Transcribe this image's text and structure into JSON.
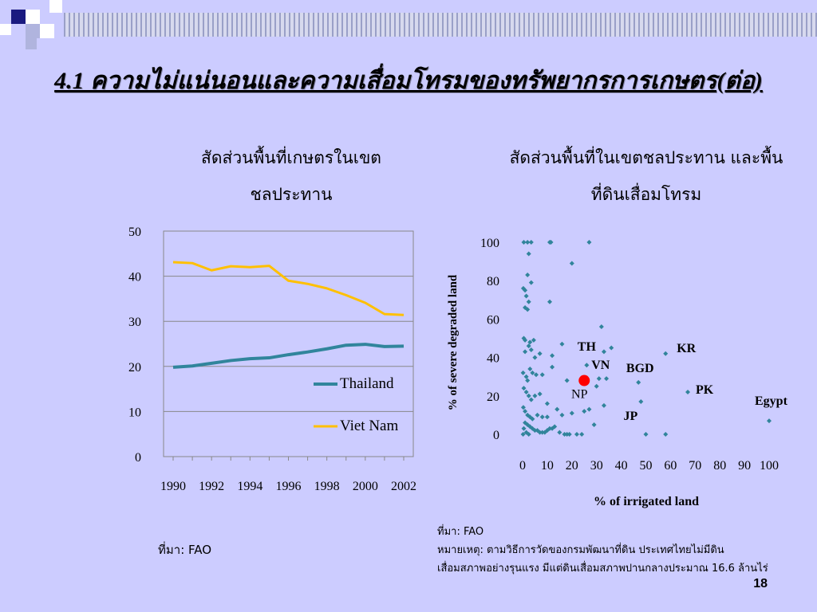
{
  "slide": {
    "title": "4.1  ความไม่แน่นอนและความเสื่อมโทรมของทรัพยากรการเกษตร(ต่อ)",
    "page_number": "18"
  },
  "left_chart": {
    "title_line1": "สัดส่วนพื้นที่เกษตรในเขต",
    "title_line2": "ชลประทาน",
    "source": "ที่มา: FAO"
  },
  "right_chart": {
    "title_line1": "สัดส่วนพื้นที่ในเขตชลประทาน และพื้น",
    "title_line2": "ที่ดินเสื่อมโทรม",
    "source": "ที่มา: FAO",
    "note_line1": "หมายเหตุ: ตามวิธีการวัดของกรมพัฒนาที่ดิน ประเทศไทยไม่มีดิน",
    "note_line2": "เสื่อมสภาพอย่างรุนแรง มีแต่ดินเสื่อมสภาพปานกลางประมาณ 16.6 ล้านไร่"
  },
  "colors": {
    "background": "#ccccff",
    "thailand": "#31859c",
    "viet_nam": "#ffc000",
    "scatter_point": "#31849b",
    "highlight_point": "#ff0000"
  },
  "chart_data": [
    {
      "type": "line",
      "x": [
        1990,
        1991,
        1992,
        1993,
        1994,
        1995,
        1996,
        1997,
        1998,
        1999,
        2000,
        2001,
        2002
      ],
      "xticks": [
        "1990",
        "1992",
        "1994",
        "1996",
        "1998",
        "2000",
        "2002"
      ],
      "yticks": [
        "0",
        "10",
        "20",
        "30",
        "40",
        "50"
      ],
      "ylim": [
        0,
        50
      ],
      "grid": true,
      "legend_position": "right",
      "series": [
        {
          "name": "Thailand",
          "values": [
            19.8,
            20.1,
            20.7,
            21.3,
            21.7,
            21.9,
            22.6,
            23.2,
            23.9,
            24.7,
            24.9,
            24.4,
            24.5
          ]
        },
        {
          "name": "Viet Nam",
          "values": [
            43.1,
            42.9,
            41.3,
            42.2,
            42.0,
            42.3,
            39.0,
            38.3,
            37.3,
            35.8,
            34.1,
            31.6,
            31.4
          ]
        }
      ]
    },
    {
      "type": "scatter",
      "xlabel": "% of irrigated land",
      "ylabel": "% of severe degraded land",
      "xlim": [
        0,
        100
      ],
      "ylim": [
        0,
        100
      ],
      "xticks": [
        "0",
        "10",
        "20",
        "30",
        "40",
        "50",
        "60",
        "70",
        "80",
        "90",
        "100"
      ],
      "yticks": [
        "0",
        "20",
        "40",
        "60",
        "80",
        "100"
      ],
      "grid": false,
      "points": [
        [
          0.5,
          100
        ],
        [
          2,
          100
        ],
        [
          3.5,
          100
        ],
        [
          11,
          100
        ],
        [
          11.5,
          100
        ],
        [
          27,
          100
        ],
        [
          2.5,
          94
        ],
        [
          20,
          89
        ],
        [
          0.3,
          76
        ],
        [
          1,
          75
        ],
        [
          2,
          83
        ],
        [
          3.5,
          79
        ],
        [
          1.5,
          72
        ],
        [
          2.5,
          69
        ],
        [
          11,
          69
        ],
        [
          1,
          66
        ],
        [
          2,
          65
        ],
        [
          0.5,
          50
        ],
        [
          1,
          49
        ],
        [
          3,
          48
        ],
        [
          4.5,
          49
        ],
        [
          2.5,
          46
        ],
        [
          3.5,
          44
        ],
        [
          1,
          43
        ],
        [
          5,
          40
        ],
        [
          7,
          42
        ],
        [
          12,
          41
        ],
        [
          16,
          47
        ],
        [
          32,
          56
        ],
        [
          33,
          43
        ],
        [
          36,
          45
        ],
        [
          34,
          29
        ],
        [
          30,
          25
        ],
        [
          0.2,
          32
        ],
        [
          1.5,
          30
        ],
        [
          2,
          28
        ],
        [
          3,
          34
        ],
        [
          4,
          32
        ],
        [
          5.5,
          31
        ],
        [
          8,
          31
        ],
        [
          12,
          35
        ],
        [
          18,
          28
        ],
        [
          0.5,
          24
        ],
        [
          1.5,
          22
        ],
        [
          2.5,
          20
        ],
        [
          3.5,
          18
        ],
        [
          5,
          20
        ],
        [
          7,
          21
        ],
        [
          10,
          16
        ],
        [
          14,
          13
        ],
        [
          16,
          10
        ],
        [
          20,
          11
        ],
        [
          27,
          13
        ],
        [
          0.3,
          14
        ],
        [
          1,
          12
        ],
        [
          2,
          10
        ],
        [
          3,
          9
        ],
        [
          4,
          8
        ],
        [
          6,
          10
        ],
        [
          8,
          9
        ],
        [
          10,
          9
        ],
        [
          1,
          6
        ],
        [
          2,
          5
        ],
        [
          3,
          4
        ],
        [
          4,
          3
        ],
        [
          5,
          2
        ],
        [
          6,
          2
        ],
        [
          7,
          1
        ],
        [
          8,
          1
        ],
        [
          9,
          1
        ],
        [
          10,
          2
        ],
        [
          11,
          3
        ],
        [
          12,
          3
        ],
        [
          13,
          4
        ],
        [
          15,
          1
        ],
        [
          17,
          0
        ],
        [
          18,
          0
        ],
        [
          19,
          0
        ],
        [
          22,
          0
        ],
        [
          24,
          0
        ],
        [
          0.5,
          3
        ],
        [
          1.5,
          1
        ],
        [
          2.5,
          0
        ],
        [
          0.2,
          0
        ],
        [
          25,
          12
        ],
        [
          29,
          5
        ],
        [
          33,
          15
        ],
        [
          48,
          17
        ]
      ],
      "labeled_points": [
        {
          "label": "TH",
          "x": 26,
          "y": 36
        },
        {
          "label": "VN",
          "x": 31,
          "y": 29
        },
        {
          "label": "BGD",
          "x": 47,
          "y": 27
        },
        {
          "label": "KR",
          "x": 58,
          "y": 42
        },
        {
          "label": "PK",
          "x": 67,
          "y": 22
        },
        {
          "label": "Egypt",
          "x": 100,
          "y": 7
        },
        {
          "label": "JP",
          "x": 50,
          "y": 0
        },
        {
          "label": "JP",
          "x": 58,
          "y": 0
        },
        {
          "label": "NP",
          "x": 25,
          "y": 28,
          "highlight": true
        }
      ]
    }
  ]
}
